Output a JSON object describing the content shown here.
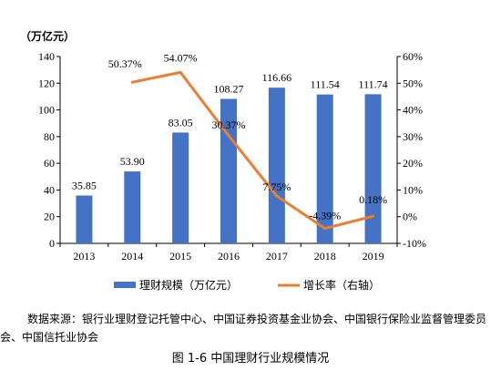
{
  "chart_data": {
    "type": "bar",
    "categories": [
      "2013",
      "2014",
      "2015",
      "2016",
      "2017",
      "2018",
      "2019"
    ],
    "series": [
      {
        "name": "理财规模（万亿元）",
        "type": "bar",
        "axis": "left",
        "color": "#4472C4",
        "values": [
          35.85,
          53.9,
          83.05,
          108.27,
          116.66,
          111.54,
          111.74
        ],
        "labels": [
          "35.85",
          "53.90",
          "83.05",
          "108.27",
          "116.66",
          "111.54",
          "111.74"
        ]
      },
      {
        "name": "增长率（右轴）",
        "type": "line",
        "axis": "right",
        "color": "#ED7D31",
        "values": [
          null,
          50.37,
          54.07,
          30.37,
          7.75,
          -4.39,
          0.18
        ],
        "labels": [
          "",
          "50.37%",
          "54.07%",
          "30.37%",
          "7.75%",
          "-4.39%",
          "0.18%"
        ]
      }
    ],
    "y_left": {
      "unit_label": "（万亿元）",
      "ylim": [
        0,
        140
      ],
      "ticks": [
        "0",
        "20",
        "40",
        "60",
        "80",
        "100",
        "120",
        "140"
      ]
    },
    "y_right": {
      "ylim": [
        -10,
        60
      ],
      "ticks": [
        "-10%",
        "0%",
        "10%",
        "20%",
        "30%",
        "40%",
        "50%",
        "60%"
      ]
    },
    "grid": false,
    "legend_position": "bottom"
  },
  "source_note": "数据来源：银行业理财登记托管中心、中国证券投资基金业协会、中国银行保险业监督管理委员会、中国信托业协会",
  "figure_caption": "图 1-6  中国理财行业规模情况"
}
